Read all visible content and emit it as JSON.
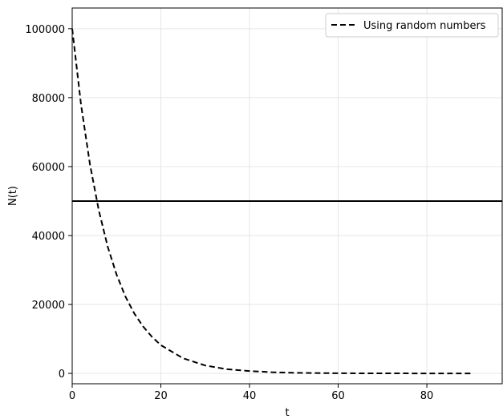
{
  "chart_data": {
    "type": "line",
    "title": "",
    "xlabel": "t",
    "ylabel": "N(t)",
    "xlim": [
      0,
      97
    ],
    "ylim": [
      -3000,
      106000
    ],
    "grid": true,
    "legend_position": "top-right",
    "x_ticks": [
      0,
      20,
      40,
      60,
      80
    ],
    "y_ticks": [
      0,
      20000,
      40000,
      60000,
      80000,
      100000
    ],
    "series": [
      {
        "name": "Using random numbers",
        "style": "dashed",
        "color": "#000000",
        "x": [
          0,
          2,
          4,
          6,
          8,
          10,
          12,
          14,
          16,
          18,
          20,
          25,
          30,
          35,
          40,
          45,
          50,
          55,
          60,
          65,
          70,
          75,
          80,
          85,
          90
        ],
        "y": [
          100000,
          77900,
          60700,
          47300,
          36800,
          28700,
          22300,
          17400,
          13600,
          10600,
          8200,
          4400,
          2300,
          1200,
          700,
          350,
          180,
          100,
          50,
          25,
          15,
          8,
          4,
          2,
          1
        ]
      }
    ],
    "hlines": [
      {
        "y": 50000,
        "color": "#000000",
        "style": "solid"
      }
    ]
  }
}
